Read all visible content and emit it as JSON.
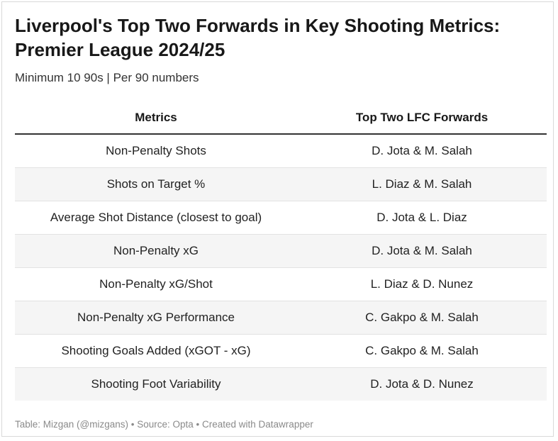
{
  "title": "Liverpool's Top Two Forwards in Key Shooting Metrics: Premier League 2024/25",
  "subtitle": "Minimum 10 90s | Per 90 numbers",
  "chart_data": {
    "type": "table",
    "columns": [
      "Metrics",
      "Top Two LFC Forwards"
    ],
    "rows": [
      [
        "Non-Penalty Shots",
        "D. Jota & M. Salah"
      ],
      [
        "Shots on Target %",
        "L. Diaz & M. Salah"
      ],
      [
        "Average Shot Distance (closest to goal)",
        "D. Jota & L. Diaz"
      ],
      [
        "Non-Penalty xG",
        "D. Jota & M. Salah"
      ],
      [
        "Non-Penalty xG/Shot",
        "L. Diaz & D. Nunez"
      ],
      [
        "Non-Penalty xG Performance",
        "C. Gakpo & M. Salah"
      ],
      [
        "Shooting Goals Added (xGOT - xG)",
        "C. Gakpo & M. Salah"
      ],
      [
        "Shooting Foot Variability",
        "D. Jota & D. Nunez"
      ]
    ]
  },
  "footer": "Table: Mizgan (@mizgans) • Source: Opta • Created with Datawrapper"
}
